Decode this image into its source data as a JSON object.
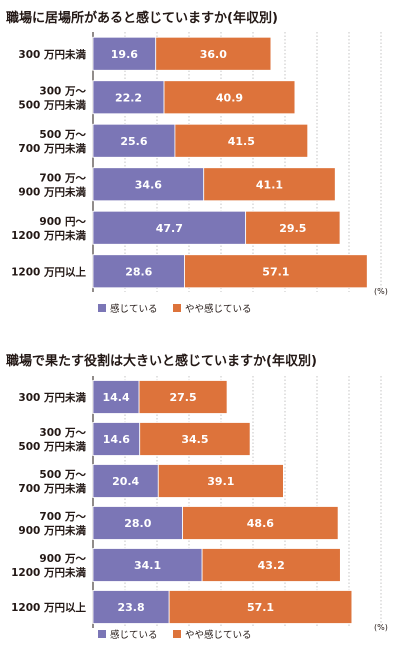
{
  "colors": {
    "series1": "#7b76b6",
    "series2": "#dd733b",
    "axis": "#231815",
    "grid": "#a09f9f",
    "frame": "#b5b5b5"
  },
  "chart_data": [
    {
      "type": "bar",
      "orientation": "horizontal",
      "stacked": true,
      "title": "職場に居場所があると感じていますか(年収別)",
      "categories": [
        [
          "300 万円未満"
        ],
        [
          "300 万～",
          "500 万円未満"
        ],
        [
          "500 万～",
          "700 万円未満"
        ],
        [
          "700 万～",
          "900 万円未満"
        ],
        [
          "900 円～",
          "1200 万円未満"
        ],
        [
          "1200 万円以上"
        ]
      ],
      "series": [
        {
          "name": "感じている",
          "values": [
            19.6,
            22.2,
            25.6,
            34.6,
            47.7,
            28.6
          ]
        },
        {
          "name": "やや感じている",
          "values": [
            36.0,
            40.9,
            41.5,
            41.1,
            29.5,
            57.1
          ]
        }
      ],
      "unit": "(%)",
      "xlim": [
        0,
        100
      ],
      "grid": true,
      "legend_position": "bottom-left"
    },
    {
      "type": "bar",
      "orientation": "horizontal",
      "stacked": true,
      "title": "職場で果たす役割は大きいと感じていますか(年収別)",
      "categories": [
        [
          "300 万円未満"
        ],
        [
          "300 万～",
          "500 万円未満"
        ],
        [
          "500 万～",
          "700 万円未満"
        ],
        [
          "700 万～",
          "900 万円未満"
        ],
        [
          "900 万～",
          "1200 万円未満"
        ],
        [
          "1200 万円以上"
        ]
      ],
      "series": [
        {
          "name": "感じている",
          "values": [
            14.4,
            14.6,
            20.4,
            28.0,
            34.1,
            23.8
          ]
        },
        {
          "name": "やや感じている",
          "values": [
            27.5,
            34.5,
            39.1,
            48.6,
            43.2,
            57.1
          ]
        }
      ],
      "unit": "(%)",
      "xlim": [
        0,
        100
      ],
      "grid": true,
      "legend_position": "bottom-left"
    }
  ]
}
